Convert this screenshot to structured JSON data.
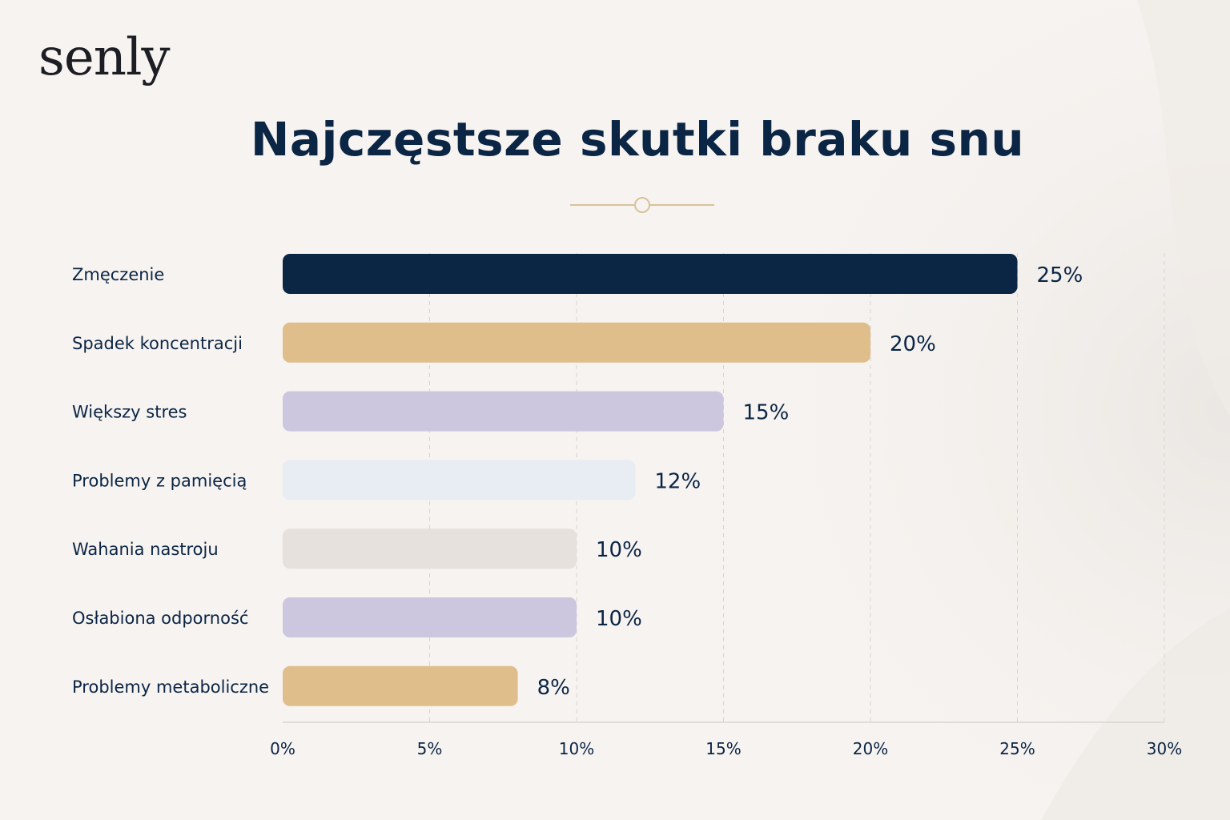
{
  "brand": {
    "logo_text": "senly"
  },
  "colors": {
    "background": "#f6f3f0",
    "navy": "#0b2545",
    "gold": "#dfbe8c",
    "lavender": "#cdc6df",
    "ice": "#e8ecf3",
    "stone": "#e6e1dd",
    "divider": "#d9c29a",
    "grid": "#d8d4d0"
  },
  "chart_data": {
    "type": "bar",
    "orientation": "horizontal",
    "title": "Najczęstsze skutki braku snu",
    "xlabel": "",
    "ylabel": "",
    "categories": [
      "Zmęczenie",
      "Spadek koncentracji",
      "Większy stres",
      "Problemy z pamięcią",
      "Wahania nastroju",
      "Osłabiona odporność",
      "Problemy metaboliczne"
    ],
    "values": [
      25,
      20,
      15,
      12,
      10,
      10,
      8
    ],
    "value_labels": [
      "25%",
      "20%",
      "15%",
      "12%",
      "10%",
      "10%",
      "8%"
    ],
    "bar_colors": [
      "#0b2545",
      "#dfbe8c",
      "#cdc6df",
      "#e8ecf3",
      "#e6e1dd",
      "#cdc6df",
      "#dfbe8c"
    ],
    "xlim": [
      0,
      30
    ],
    "xticks": [
      0,
      5,
      10,
      15,
      20,
      25,
      30
    ],
    "xtick_labels": [
      "0%",
      "5%",
      "10%",
      "15%",
      "20%",
      "25%",
      "30%"
    ],
    "grid": true,
    "legend": false
  }
}
